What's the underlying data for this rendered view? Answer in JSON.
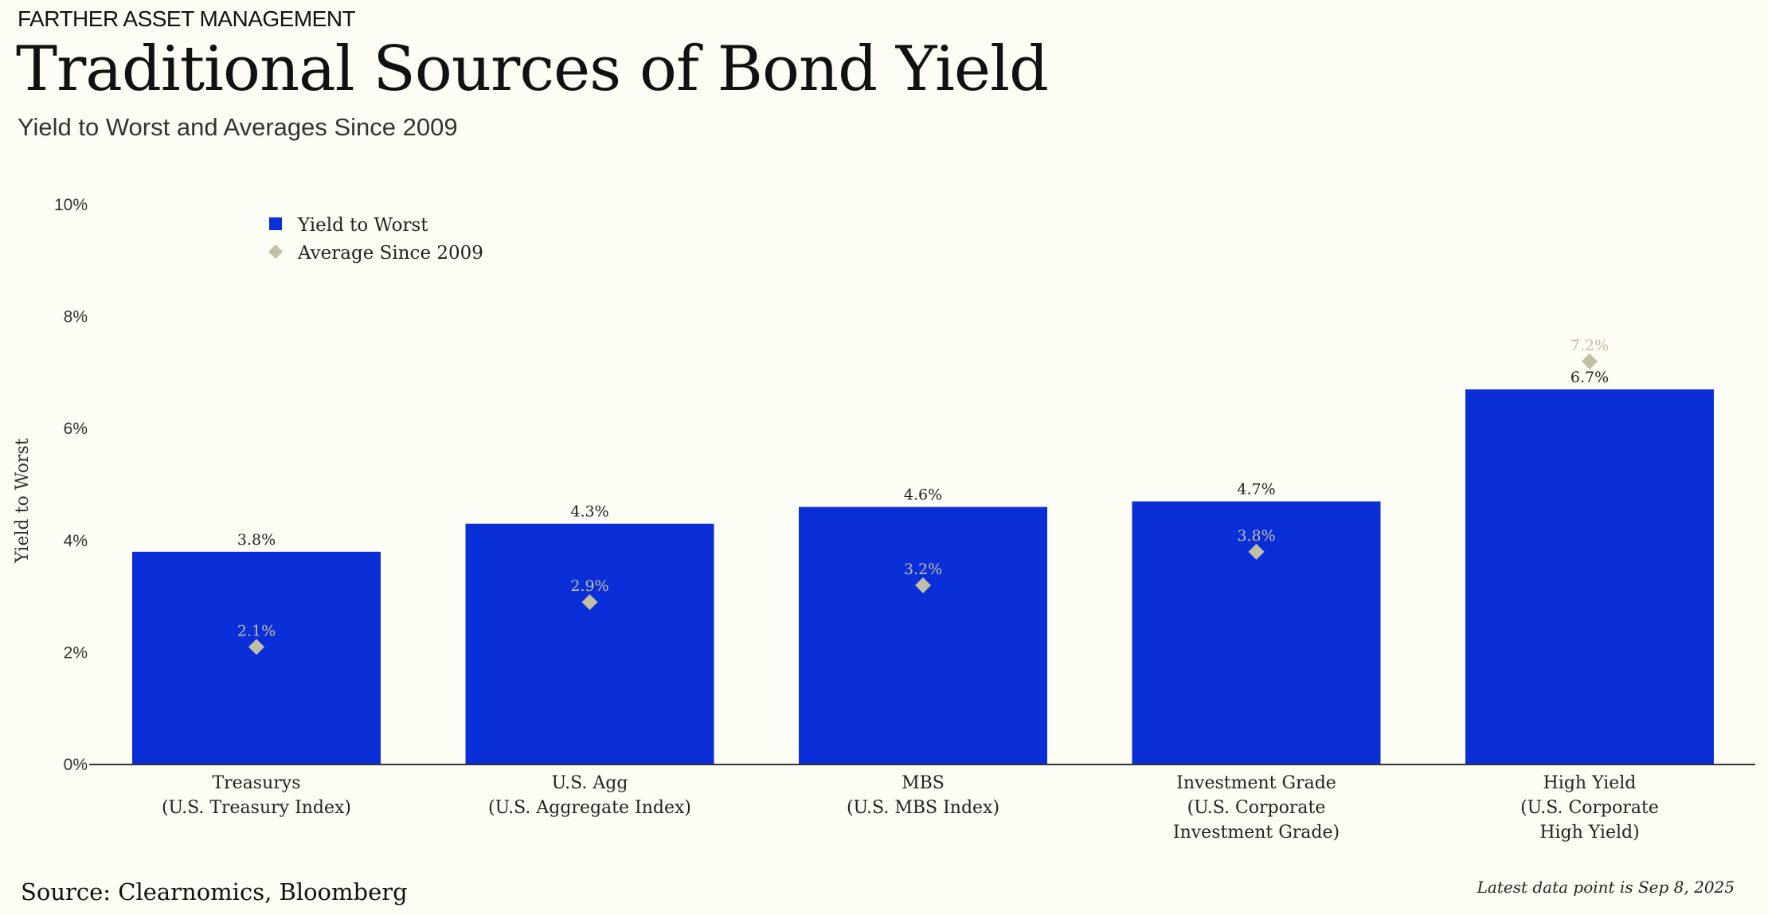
{
  "header": {
    "brand": "FARTHER ASSET MANAGEMENT",
    "title": "Traditional Sources of Bond Yield",
    "subtitle": "Yield to Worst and Averages  Since 2009"
  },
  "footer": {
    "source": "Source: Clearnomics, Bloomberg",
    "note": "Latest data point is Sep 8, 2025"
  },
  "colors": {
    "bar": "#0a2ed8",
    "marker": "#c2c0a4",
    "background": "#fdfdf5",
    "axis": "#333333"
  },
  "chart_data": {
    "type": "bar",
    "ylabel": "Yield to Worst",
    "ylim": [
      0,
      10
    ],
    "yticks": [
      0,
      2,
      4,
      6,
      8,
      10
    ],
    "ytick_labels": [
      "0%",
      "2%",
      "4%",
      "6%",
      "8%",
      "10%"
    ],
    "legend_position": "top-left",
    "grid": false,
    "categories": [
      [
        "Treasurys",
        "(U.S. Treasury Index)"
      ],
      [
        "U.S. Agg",
        "(U.S. Aggregate Index)"
      ],
      [
        "MBS",
        "(U.S. MBS Index)"
      ],
      [
        "Investment Grade",
        "(U.S. Corporate",
        "Investment Grade)"
      ],
      [
        "High Yield",
        "(U.S. Corporate",
        "High Yield)"
      ]
    ],
    "series": [
      {
        "name": "Yield to Worst",
        "kind": "bar",
        "values": [
          3.8,
          4.3,
          4.6,
          4.7,
          6.7
        ],
        "labels": [
          "3.8%",
          "4.3%",
          "4.6%",
          "4.7%",
          "6.7%"
        ]
      },
      {
        "name": "Average Since 2009",
        "kind": "diamond",
        "values": [
          2.1,
          2.9,
          3.2,
          3.8,
          7.2
        ],
        "labels": [
          "2.1%",
          "2.9%",
          "3.2%",
          "3.8%",
          "7.2%"
        ]
      }
    ]
  }
}
